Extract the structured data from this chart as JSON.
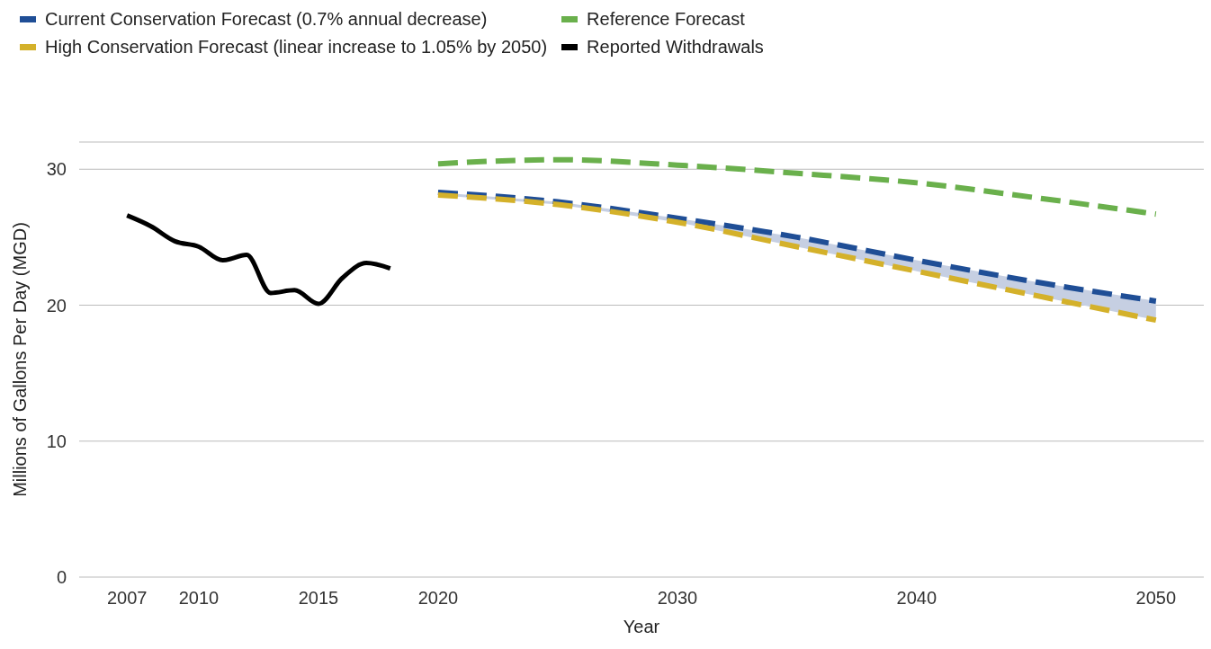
{
  "chart_data": {
    "type": "line",
    "xlabel": "Year",
    "ylabel": "Millions of Gallons Per Day (MGD)",
    "xlim": [
      2005,
      2052
    ],
    "xticks": [
      2007,
      2010,
      2015,
      2020,
      2030,
      2040,
      2050
    ],
    "ylim": [
      0,
      32
    ],
    "yticks": [
      0,
      10,
      20,
      30
    ],
    "grid": "y",
    "legend": "top left",
    "series": [
      {
        "name": "Current Conservation Forecast (0.7% annual decrease)",
        "color": "#1f4e96",
        "line_style": "dashed",
        "x": [
          2020,
          2025,
          2030,
          2035,
          2040,
          2045,
          2050
        ],
        "values": [
          28.3,
          27.6,
          26.4,
          25.0,
          23.3,
          21.7,
          20.3
        ],
        "lower": [
          28.1,
          27.4,
          26.1,
          24.3,
          22.5,
          20.7,
          18.9
        ],
        "upper": [
          28.3,
          27.6,
          26.4,
          25.0,
          23.3,
          21.7,
          20.3
        ]
      },
      {
        "name": "High Conservation Forecast (linear increase to 1.05% by 2050)",
        "color": "#d4b12a",
        "line_style": "dashed",
        "x": [
          2020,
          2025,
          2030,
          2035,
          2040,
          2045,
          2050
        ],
        "values": [
          28.1,
          27.4,
          26.1,
          24.3,
          22.5,
          20.7,
          18.9
        ]
      },
      {
        "name": "Reference Forecast",
        "color": "#6ab04c",
        "line_style": "dashed",
        "x": [
          2020,
          2025,
          2030,
          2035,
          2040,
          2045,
          2050
        ],
        "values": [
          30.4,
          30.7,
          30.3,
          29.7,
          29.0,
          27.9,
          26.7
        ]
      },
      {
        "name": "Reported Withdrawals",
        "color": "#000000",
        "line_style": "solid",
        "x": [
          2007,
          2008,
          2009,
          2010,
          2011,
          2012,
          2013,
          2014,
          2015,
          2016,
          2017,
          2018
        ],
        "values": [
          26.6,
          25.8,
          24.7,
          24.3,
          23.3,
          23.7,
          20.9,
          21.1,
          20.1,
          22.0,
          23.1,
          22.7
        ]
      }
    ]
  }
}
